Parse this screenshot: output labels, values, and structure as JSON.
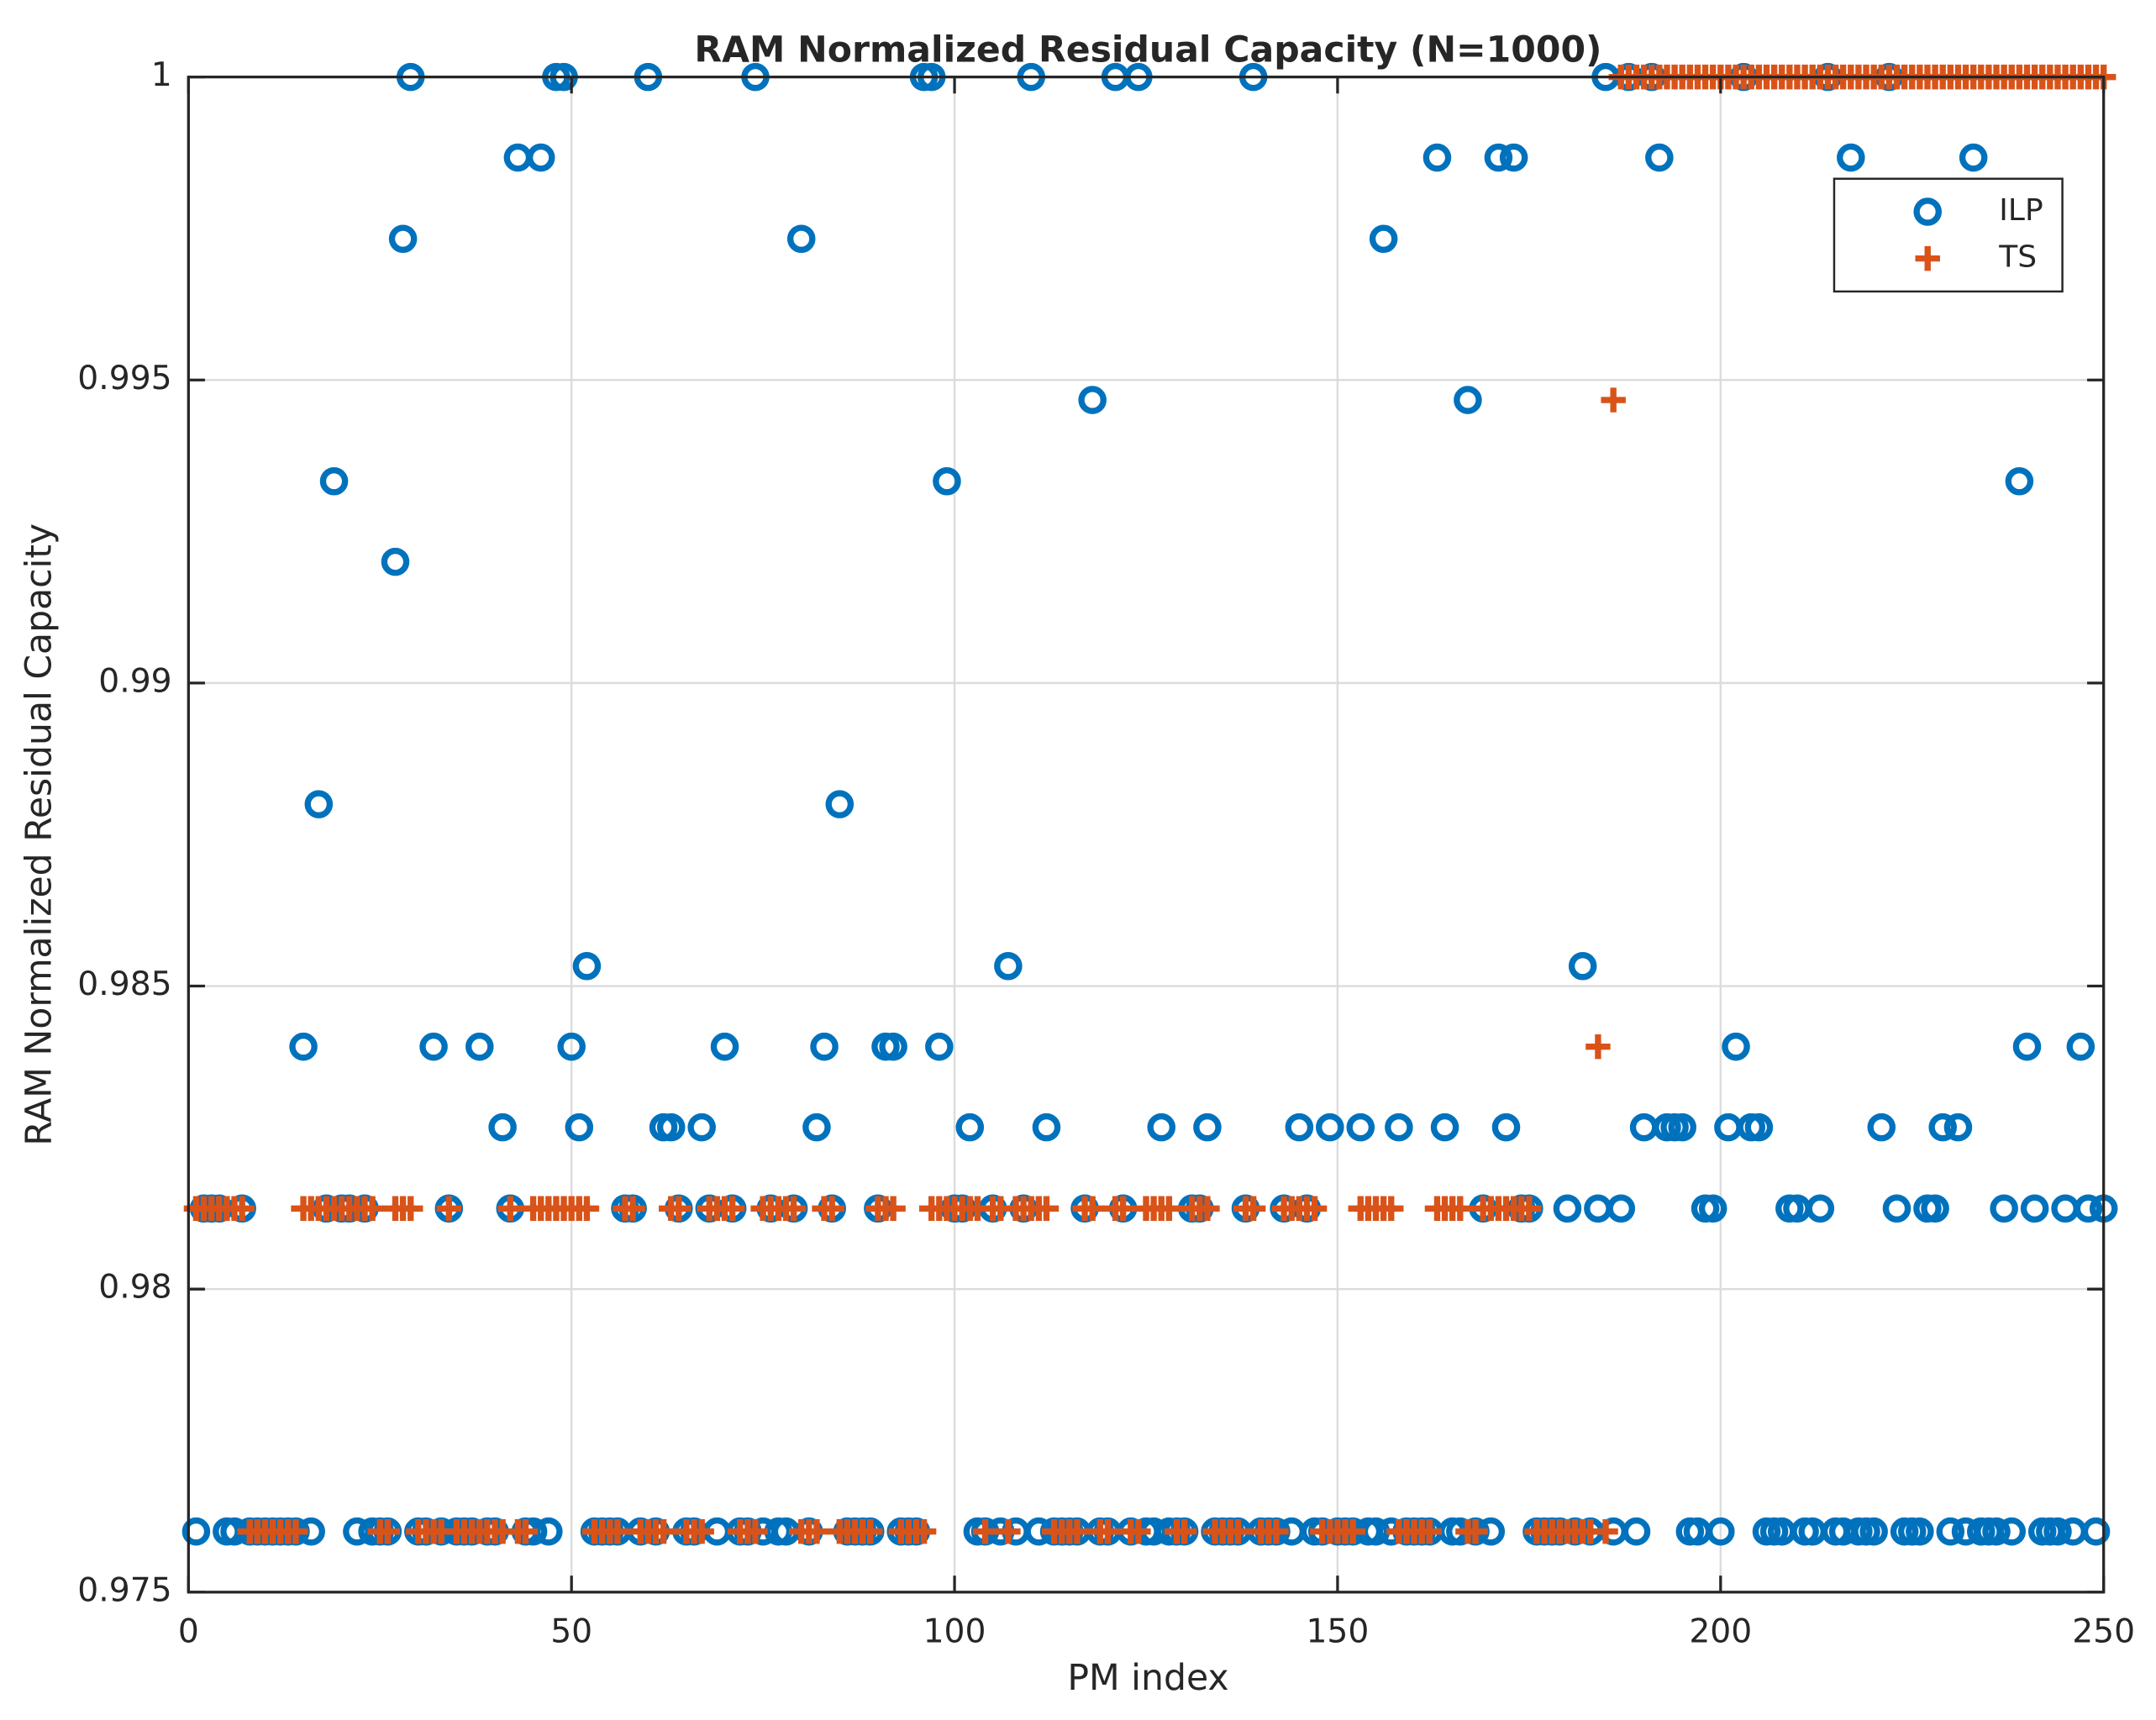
{
  "chart_data": {
    "type": "scatter",
    "title": "RAM Normalized Residual Capacity (N=1000)",
    "x_label": "PM index",
    "y_label": "RAM Normalized Residual Capacity",
    "xlim": [
      0,
      250
    ],
    "xticks": [
      0,
      50,
      100,
      150,
      200,
      250
    ],
    "ylim": [
      0.975,
      1
    ],
    "yticks": [
      0.975,
      0.98,
      0.985,
      0.99,
      0.995,
      1
    ],
    "grid": true,
    "legend": "upper right",
    "x": [
      1,
      2,
      3,
      4,
      5,
      6,
      7,
      8,
      9,
      10,
      11,
      12,
      13,
      14,
      15,
      16,
      17,
      18,
      19,
      20,
      21,
      22,
      23,
      24,
      25,
      26,
      27,
      28,
      29,
      30,
      31,
      32,
      33,
      34,
      35,
      36,
      37,
      38,
      39,
      40,
      41,
      42,
      43,
      44,
      45,
      46,
      47,
      48,
      49,
      50,
      51,
      52,
      53,
      54,
      55,
      56,
      57,
      58,
      59,
      60,
      61,
      62,
      63,
      64,
      65,
      66,
      67,
      68,
      69,
      70,
      71,
      72,
      73,
      74,
      75,
      76,
      77,
      78,
      79,
      80,
      81,
      82,
      83,
      84,
      85,
      86,
      87,
      88,
      89,
      90,
      91,
      92,
      93,
      94,
      95,
      96,
      97,
      98,
      99,
      100,
      101,
      102,
      103,
      104,
      105,
      106,
      107,
      108,
      109,
      110,
      111,
      112,
      113,
      114,
      115,
      116,
      117,
      118,
      119,
      120,
      121,
      122,
      123,
      124,
      125,
      126,
      127,
      128,
      129,
      130,
      131,
      132,
      133,
      134,
      135,
      136,
      137,
      138,
      139,
      140,
      141,
      142,
      143,
      144,
      145,
      146,
      147,
      148,
      149,
      150,
      151,
      152,
      153,
      154,
      155,
      156,
      157,
      158,
      159,
      160,
      161,
      162,
      163,
      164,
      165,
      166,
      167,
      168,
      169,
      170,
      171,
      172,
      173,
      174,
      175,
      176,
      177,
      178,
      179,
      180,
      181,
      182,
      183,
      184,
      185,
      186,
      187,
      188,
      189,
      190,
      191,
      192,
      193,
      194,
      195,
      196,
      197,
      198,
      199,
      200,
      201,
      202,
      203,
      204,
      205,
      206,
      207,
      208,
      209,
      210,
      211,
      212,
      213,
      214,
      215,
      216,
      217,
      218,
      219,
      220,
      221,
      222,
      223,
      224,
      225,
      226,
      227,
      228,
      229,
      230,
      231,
      232,
      233,
      234,
      235,
      236,
      237,
      238,
      239,
      240,
      241,
      242,
      243,
      244,
      245,
      246,
      247,
      248,
      249,
      250
    ],
    "series": [
      {
        "name": "ILP",
        "color": "#0072bd",
        "marker": "circle",
        "values": [
          0.976,
          0.98133,
          0.98133,
          0.98133,
          0.976,
          0.976,
          0.98133,
          0.976,
          0.976,
          0.976,
          0.976,
          0.976,
          0.976,
          0.976,
          0.984,
          0.976,
          0.988,
          0.98133,
          0.99333,
          0.98133,
          0.98133,
          0.976,
          0.98133,
          0.976,
          0.976,
          0.976,
          0.992,
          0.99733,
          1,
          0.976,
          0.976,
          0.984,
          0.976,
          0.98133,
          0.976,
          0.976,
          0.976,
          0.984,
          0.976,
          0.976,
          0.98267,
          0.98133,
          0.99867,
          0.976,
          0.976,
          0.99867,
          0.976,
          1,
          1,
          0.984,
          0.98267,
          0.98533,
          0.976,
          0.976,
          0.976,
          0.976,
          0.98133,
          0.98133,
          0.976,
          1,
          0.976,
          0.98267,
          0.98267,
          0.98133,
          0.976,
          0.976,
          0.98267,
          0.98133,
          0.976,
          0.984,
          0.98133,
          0.976,
          0.976,
          1,
          0.976,
          0.98133,
          0.976,
          0.976,
          0.98133,
          0.99733,
          0.976,
          0.98267,
          0.984,
          0.98133,
          0.988,
          0.976,
          0.976,
          0.976,
          0.976,
          0.98133,
          0.984,
          0.984,
          0.976,
          0.976,
          0.976,
          1,
          1,
          0.984,
          0.99333,
          0.98133,
          0.98133,
          0.98267,
          0.976,
          0.976,
          0.98133,
          0.976,
          0.98533,
          0.976,
          0.98133,
          1,
          0.976,
          0.98267,
          0.976,
          0.976,
          0.976,
          0.976,
          0.98133,
          0.99467,
          0.976,
          0.976,
          1,
          0.98133,
          0.976,
          1,
          0.976,
          0.976,
          0.98267,
          0.976,
          0.976,
          0.976,
          0.98133,
          0.98133,
          0.98267,
          0.976,
          0.976,
          0.976,
          0.976,
          0.98133,
          1,
          0.976,
          0.976,
          0.976,
          0.98133,
          0.976,
          0.98267,
          0.98133,
          0.976,
          0.976,
          0.98267,
          0.976,
          0.976,
          0.976,
          0.98267,
          0.976,
          0.976,
          0.99733,
          0.976,
          0.98267,
          0.976,
          0.976,
          0.976,
          0.976,
          0.99867,
          0.98267,
          0.976,
          0.976,
          0.99467,
          0.976,
          0.98133,
          0.976,
          0.99867,
          0.98267,
          0.99867,
          0.98133,
          0.98133,
          0.976,
          0.976,
          0.976,
          0.976,
          0.98133,
          0.976,
          0.98533,
          0.976,
          0.98133,
          1,
          0.976,
          0.98133,
          1,
          0.976,
          0.98267,
          1,
          0.99867,
          0.98267,
          0.98267,
          0.98267,
          0.976,
          0.976,
          0.98133,
          0.98133,
          0.976,
          0.98267,
          0.984,
          1,
          0.98267,
          0.98267,
          0.976,
          0.976,
          0.976,
          0.98133,
          0.98133,
          0.976,
          0.976,
          0.98133,
          1,
          0.976,
          0.976,
          0.99867,
          0.976,
          0.976,
          0.976,
          0.98267,
          1,
          0.98133,
          0.976,
          0.976,
          0.976,
          0.98133,
          0.98133,
          0.98267,
          0.976,
          0.98267,
          0.976,
          0.99867,
          0.976,
          0.976,
          0.976,
          0.98133,
          0.976,
          0.99333,
          0.984,
          0.98133,
          0.976,
          0.976,
          0.976,
          0.98133,
          0.976,
          0.984,
          0.98133,
          0.976,
          0.98133
        ]
      },
      {
        "name": "TS",
        "color": "#d95319",
        "marker": "plus",
        "values": [
          0.98133,
          0.98133,
          0.98133,
          0.98133,
          0.98133,
          0.98133,
          0.98133,
          0.976,
          0.976,
          0.976,
          0.976,
          0.976,
          0.976,
          0.976,
          0.98133,
          0.98133,
          0.98133,
          0.98133,
          0.98133,
          0.98133,
          0.98133,
          0.98133,
          0.98133,
          0.98133,
          0.976,
          0.976,
          0.98133,
          0.98133,
          0.98133,
          0.976,
          0.976,
          0.976,
          0.976,
          0.98133,
          0.976,
          0.976,
          0.976,
          0.976,
          0.976,
          0.976,
          0.976,
          0.98133,
          0.976,
          0.976,
          0.98133,
          0.98133,
          0.98133,
          0.98133,
          0.98133,
          0.98133,
          0.98133,
          0.98133,
          0.976,
          0.976,
          0.976,
          0.976,
          0.98133,
          0.98133,
          0.976,
          0.976,
          0.976,
          0.976,
          0.98133,
          0.98133,
          0.976,
          0.976,
          0.976,
          0.98133,
          0.98133,
          0.98133,
          0.98133,
          0.976,
          0.976,
          0.976,
          0.98133,
          0.98133,
          0.98133,
          0.98133,
          0.98133,
          0.976,
          0.976,
          0.976,
          0.98133,
          0.98133,
          0.976,
          0.976,
          0.976,
          0.976,
          0.976,
          0.98133,
          0.98133,
          0.98133,
          0.976,
          0.976,
          0.976,
          0.976,
          0.98133,
          0.98133,
          0.98133,
          0.98133,
          0.98133,
          0.98133,
          0.98133,
          0.976,
          0.98133,
          0.98133,
          0.976,
          0.98133,
          0.98133,
          0.98133,
          0.98133,
          0.98133,
          0.976,
          0.976,
          0.976,
          0.976,
          0.98133,
          0.98133,
          0.976,
          0.976,
          0.98133,
          0.98133,
          0.976,
          0.976,
          0.98133,
          0.98133,
          0.98133,
          0.98133,
          0.976,
          0.976,
          0.98133,
          0.98133,
          0.98133,
          0.976,
          0.976,
          0.976,
          0.976,
          0.98133,
          0.98133,
          0.976,
          0.976,
          0.976,
          0.98133,
          0.98133,
          0.98133,
          0.98133,
          0.98133,
          0.976,
          0.976,
          0.976,
          0.976,
          0.976,
          0.98133,
          0.98133,
          0.98133,
          0.98133,
          0.98133,
          0.976,
          0.976,
          0.976,
          0.976,
          0.976,
          0.98133,
          0.98133,
          0.98133,
          0.98133,
          0.976,
          0.976,
          0.98133,
          0.98133,
          0.98133,
          0.98133,
          0.98133,
          0.98133,
          0.98133,
          0.976,
          0.976,
          0.976,
          0.976,
          0.976,
          0.976,
          0.976,
          0.976,
          0.984,
          0.976,
          0.99467,
          1,
          1,
          1,
          1,
          1,
          1,
          1,
          1,
          1,
          1,
          1,
          1,
          1,
          1,
          1,
          1,
          1,
          1,
          1,
          1,
          1,
          1,
          1,
          1,
          1,
          1,
          1,
          1,
          1,
          1,
          1,
          1,
          1,
          1,
          1,
          1,
          1,
          1,
          1,
          1,
          1,
          1,
          1,
          1,
          1,
          1,
          1,
          1,
          1,
          1,
          1,
          1,
          1,
          1,
          1,
          1,
          1,
          1,
          1,
          1,
          1,
          1,
          1,
          1
        ]
      }
    ]
  }
}
